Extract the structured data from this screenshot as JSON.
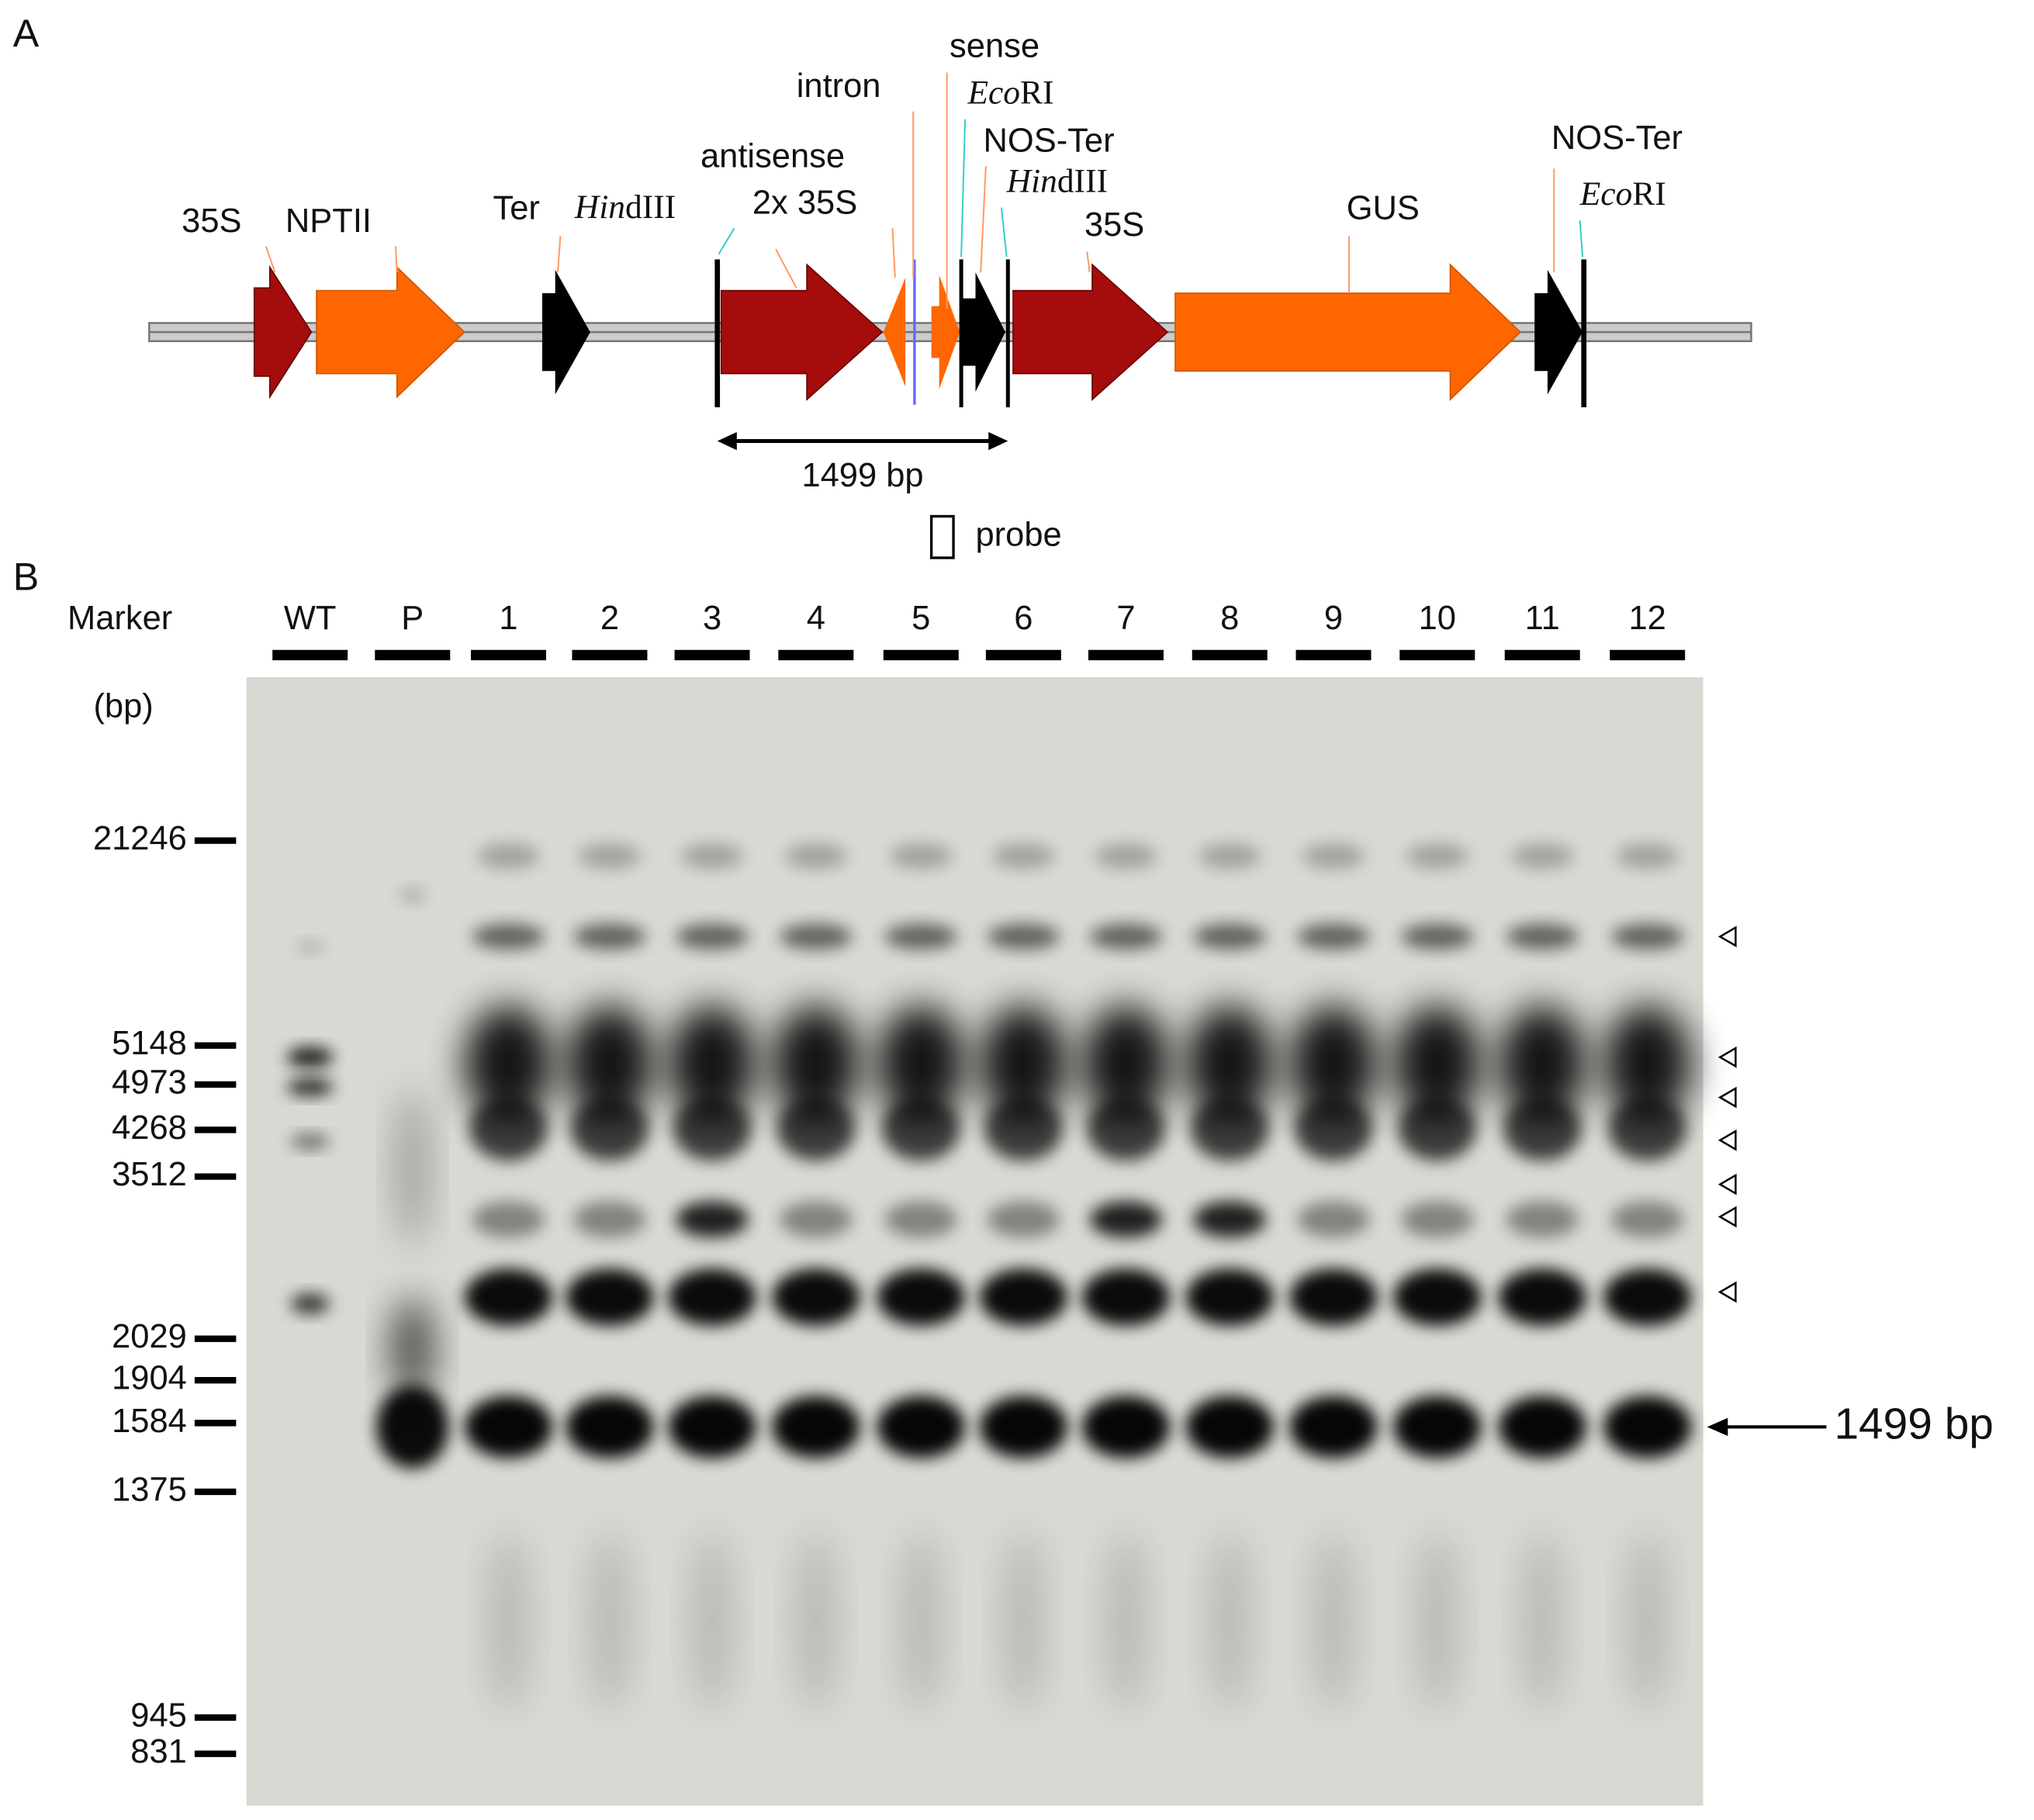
{
  "panel_a": {
    "label": "A",
    "features": [
      {
        "text": "35S"
      },
      {
        "text": "NPTII"
      },
      {
        "text": "Ter"
      },
      {
        "italic": "Hin",
        "rest": "dIII"
      },
      {
        "text": "antisense"
      },
      {
        "text": "2x 35S"
      },
      {
        "text": "intron"
      },
      {
        "text": "sense"
      },
      {
        "italic": "Eco",
        "rest": "RI"
      },
      {
        "text": "NOS-Ter"
      },
      {
        "italic": "Hin",
        "rest": "dIII"
      },
      {
        "text": "35S"
      },
      {
        "text": "GUS"
      },
      {
        "text": "NOS-Ter"
      },
      {
        "italic": "Eco",
        "rest": "RI"
      }
    ],
    "span_label": "1499 bp",
    "probe_label": "probe"
  },
  "panel_b": {
    "label": "B",
    "marker_label": "Marker",
    "unit_label": "(bp)",
    "lanes": [
      "WT",
      "P",
      "1",
      "2",
      "3",
      "4",
      "5",
      "6",
      "7",
      "8",
      "9",
      "10",
      "11",
      "12"
    ],
    "marker_sizes": [
      21246,
      5148,
      4973,
      4268,
      3512,
      2029,
      1904,
      1584,
      1375,
      945,
      831
    ],
    "arrow_label": "1499 bp"
  }
}
